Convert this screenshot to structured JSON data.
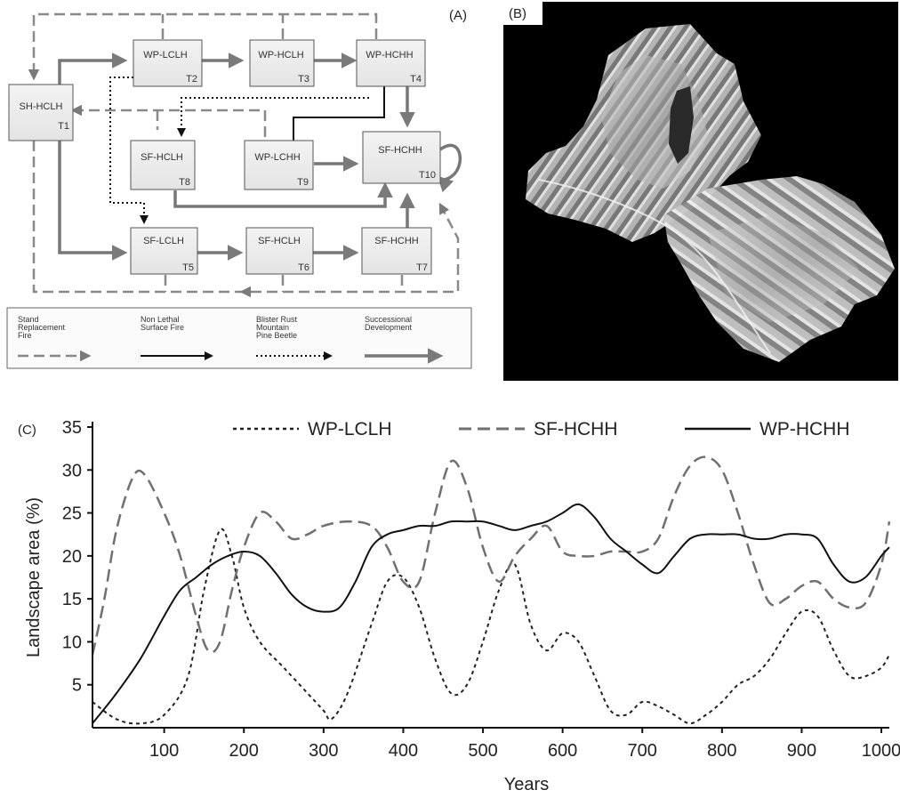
{
  "figure": {
    "panel_a": {
      "label": "(A)",
      "states": [
        {
          "id": "SH-HCLH",
          "tag": "T1"
        },
        {
          "id": "WP-LCLH",
          "tag": "T2"
        },
        {
          "id": "WP-HCLH",
          "tag": "T3"
        },
        {
          "id": "WP-HCHH",
          "tag": "T4"
        },
        {
          "id": "SF-LCLH",
          "tag": "T5"
        },
        {
          "id": "SF-HCLH",
          "tag": "T6"
        },
        {
          "id": "SF-HCHH",
          "tag": "T7"
        },
        {
          "id": "SF-HCLH",
          "tag": "T8"
        },
        {
          "id": "WP-LCHH",
          "tag": "T9"
        },
        {
          "id": "SF-HCHH",
          "tag": "T10"
        }
      ],
      "legend": [
        {
          "label": "Stand\nReplacement\nFire",
          "style": "dashed",
          "color": "#808080"
        },
        {
          "label": "Non Lethal\nSurface Fire",
          "style": "solid-thin",
          "color": "#111111"
        },
        {
          "label": "Blister Rust\nMountain\nPine Beetle",
          "style": "dotted",
          "color": "#111111"
        },
        {
          "label": "Successional\nDevelopment",
          "style": "solid",
          "color": "#808080"
        }
      ]
    },
    "panel_b": {
      "label": "(B)"
    },
    "panel_c": {
      "label": "(C)"
    }
  },
  "chart_data": {
    "type": "line",
    "title": "",
    "xlabel": "Years",
    "ylabel": "Landscape area (%)",
    "xlim": [
      10,
      1010
    ],
    "ylim": [
      0,
      35
    ],
    "xticks": [
      100,
      200,
      300,
      400,
      500,
      600,
      700,
      800,
      900,
      1000
    ],
    "yticks": [
      5,
      10,
      15,
      20,
      25,
      30,
      35
    ],
    "grid": false,
    "legend_position": "top",
    "series": [
      {
        "name": "WP-LCLH",
        "style": "dotted",
        "color": "#222222",
        "points": [
          [
            10,
            3
          ],
          [
            40,
            1
          ],
          [
            70,
            0.5
          ],
          [
            100,
            1.5
          ],
          [
            130,
            6
          ],
          [
            150,
            16
          ],
          [
            170,
            23
          ],
          [
            185,
            20
          ],
          [
            200,
            14
          ],
          [
            220,
            10
          ],
          [
            250,
            7
          ],
          [
            280,
            4
          ],
          [
            300,
            2
          ],
          [
            310,
            1
          ],
          [
            330,
            4
          ],
          [
            360,
            12
          ],
          [
            380,
            17
          ],
          [
            400,
            17.5
          ],
          [
            420,
            14
          ],
          [
            440,
            8
          ],
          [
            460,
            4
          ],
          [
            480,
            5
          ],
          [
            500,
            10
          ],
          [
            520,
            16
          ],
          [
            540,
            19
          ],
          [
            560,
            12
          ],
          [
            580,
            9
          ],
          [
            600,
            11
          ],
          [
            620,
            10
          ],
          [
            640,
            6
          ],
          [
            660,
            2
          ],
          [
            680,
            1.5
          ],
          [
            700,
            3
          ],
          [
            720,
            2.5
          ],
          [
            740,
            1.5
          ],
          [
            760,
            0.5
          ],
          [
            780,
            1.5
          ],
          [
            800,
            3
          ],
          [
            820,
            5
          ],
          [
            840,
            6
          ],
          [
            860,
            8
          ],
          [
            880,
            11
          ],
          [
            900,
            13.5
          ],
          [
            920,
            13
          ],
          [
            940,
            9
          ],
          [
            960,
            6
          ],
          [
            980,
            6
          ],
          [
            1000,
            7
          ],
          [
            1010,
            8.5
          ]
        ]
      },
      {
        "name": "SF-HCHH",
        "style": "dashed",
        "color": "#707070",
        "points": [
          [
            10,
            8.5
          ],
          [
            25,
            15
          ],
          [
            40,
            23
          ],
          [
            60,
            29
          ],
          [
            75,
            29.5
          ],
          [
            100,
            25
          ],
          [
            120,
            20
          ],
          [
            140,
            13
          ],
          [
            155,
            9
          ],
          [
            170,
            10
          ],
          [
            185,
            16
          ],
          [
            200,
            21
          ],
          [
            220,
            25
          ],
          [
            240,
            24
          ],
          [
            260,
            22
          ],
          [
            280,
            22.5
          ],
          [
            300,
            23.5
          ],
          [
            330,
            24
          ],
          [
            360,
            23.5
          ],
          [
            380,
            21
          ],
          [
            400,
            17
          ],
          [
            420,
            17
          ],
          [
            440,
            25
          ],
          [
            460,
            31
          ],
          [
            480,
            28
          ],
          [
            500,
            21
          ],
          [
            520,
            17
          ],
          [
            540,
            20
          ],
          [
            560,
            22
          ],
          [
            580,
            23.5
          ],
          [
            600,
            20.5
          ],
          [
            620,
            20
          ],
          [
            640,
            20
          ],
          [
            660,
            20.5
          ],
          [
            680,
            20.5
          ],
          [
            700,
            20.5
          ],
          [
            720,
            22
          ],
          [
            740,
            27
          ],
          [
            760,
            30.5
          ],
          [
            780,
            31.5
          ],
          [
            800,
            30
          ],
          [
            820,
            25
          ],
          [
            840,
            19
          ],
          [
            860,
            14.5
          ],
          [
            880,
            15
          ],
          [
            900,
            16.5
          ],
          [
            920,
            17
          ],
          [
            940,
            15
          ],
          [
            960,
            14
          ],
          [
            980,
            14.5
          ],
          [
            1000,
            19
          ],
          [
            1010,
            24
          ]
        ]
      },
      {
        "name": "WP-HCHH",
        "style": "solid",
        "color": "#111111",
        "points": [
          [
            10,
            0.5
          ],
          [
            40,
            4
          ],
          [
            70,
            8
          ],
          [
            100,
            13
          ],
          [
            120,
            16
          ],
          [
            140,
            17.5
          ],
          [
            160,
            19
          ],
          [
            180,
            20
          ],
          [
            200,
            20.5
          ],
          [
            220,
            20
          ],
          [
            240,
            18
          ],
          [
            260,
            15.5
          ],
          [
            280,
            14
          ],
          [
            300,
            13.5
          ],
          [
            320,
            14
          ],
          [
            340,
            17
          ],
          [
            360,
            21
          ],
          [
            380,
            22.5
          ],
          [
            400,
            23
          ],
          [
            420,
            23.5
          ],
          [
            440,
            23.5
          ],
          [
            460,
            24
          ],
          [
            480,
            24
          ],
          [
            500,
            24
          ],
          [
            520,
            23.5
          ],
          [
            540,
            23
          ],
          [
            560,
            23.5
          ],
          [
            580,
            24
          ],
          [
            600,
            25
          ],
          [
            620,
            26
          ],
          [
            640,
            24.5
          ],
          [
            660,
            22
          ],
          [
            680,
            20.5
          ],
          [
            700,
            19
          ],
          [
            720,
            18
          ],
          [
            740,
            20
          ],
          [
            760,
            22
          ],
          [
            780,
            22.5
          ],
          [
            800,
            22.5
          ],
          [
            820,
            22.5
          ],
          [
            840,
            22
          ],
          [
            860,
            22
          ],
          [
            880,
            22.5
          ],
          [
            900,
            22.5
          ],
          [
            920,
            22
          ],
          [
            940,
            19
          ],
          [
            960,
            17
          ],
          [
            980,
            17.5
          ],
          [
            1000,
            20
          ],
          [
            1010,
            21
          ]
        ]
      }
    ]
  }
}
